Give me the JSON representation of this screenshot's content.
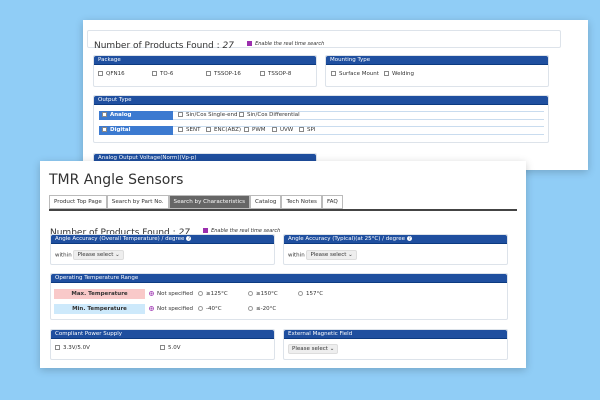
{
  "back": {
    "found_label": "Number of Products Found :",
    "found_count": "27",
    "realtime": "Enable the real time search",
    "package": {
      "title": "Package",
      "options": [
        "QFN16",
        "TO-6",
        "TSSOP-16",
        "TSSOP-8"
      ]
    },
    "mounting": {
      "title": "Mounting Type",
      "options": [
        "Surface Mount",
        "Welding"
      ]
    },
    "output": {
      "title": "Output Type",
      "analog": "Analog",
      "analog_options": [
        "Sin/Cos Single-end",
        "Sin/Cos Differential"
      ],
      "digital": "Digital",
      "digital_options": [
        "SENT",
        "ENC(ABZ)",
        "PWM",
        "UVW",
        "SPI"
      ]
    },
    "voltage": {
      "title": "Analog Output Voltage(Norm)(Vp-p)"
    }
  },
  "front": {
    "title": "TMR Angle Sensors",
    "tabs": [
      "Product Top Page",
      "Search by Part No.",
      "Search by Characteristics",
      "Catalog",
      "Tech Notes",
      "FAQ"
    ],
    "found_label": "Number of Products Found :",
    "found_count": "27",
    "realtime": "Enable the real time search",
    "acc_overall": {
      "title": "Angle Accuracy (Overall Temperature) / degree",
      "within": "within",
      "select": "Please select"
    },
    "acc_typical": {
      "title": "Angle Accuracy (Typical)(at 25°C) / degree",
      "within": "within",
      "select": "Please select"
    },
    "temp": {
      "title": "Operating Temperature Range",
      "max": "Max. Temperature",
      "max_options": [
        "Not specified",
        "≥125°C",
        "≥150°C",
        "157°C"
      ],
      "min": "Min. Temperature",
      "min_options": [
        "Not specified",
        "-40°C",
        "≤-20°C"
      ]
    },
    "power": {
      "title": "Compliant Power Supply",
      "options": [
        "3.3V/5.0V",
        "5.0V"
      ]
    },
    "field": {
      "title": "External Magnetic Field",
      "select": "Please select"
    }
  },
  "colors": {
    "header": "#1f4f9f",
    "background": "#90cdf6",
    "max_bg": "#f9c9c9",
    "min_bg": "#cde9fb"
  }
}
